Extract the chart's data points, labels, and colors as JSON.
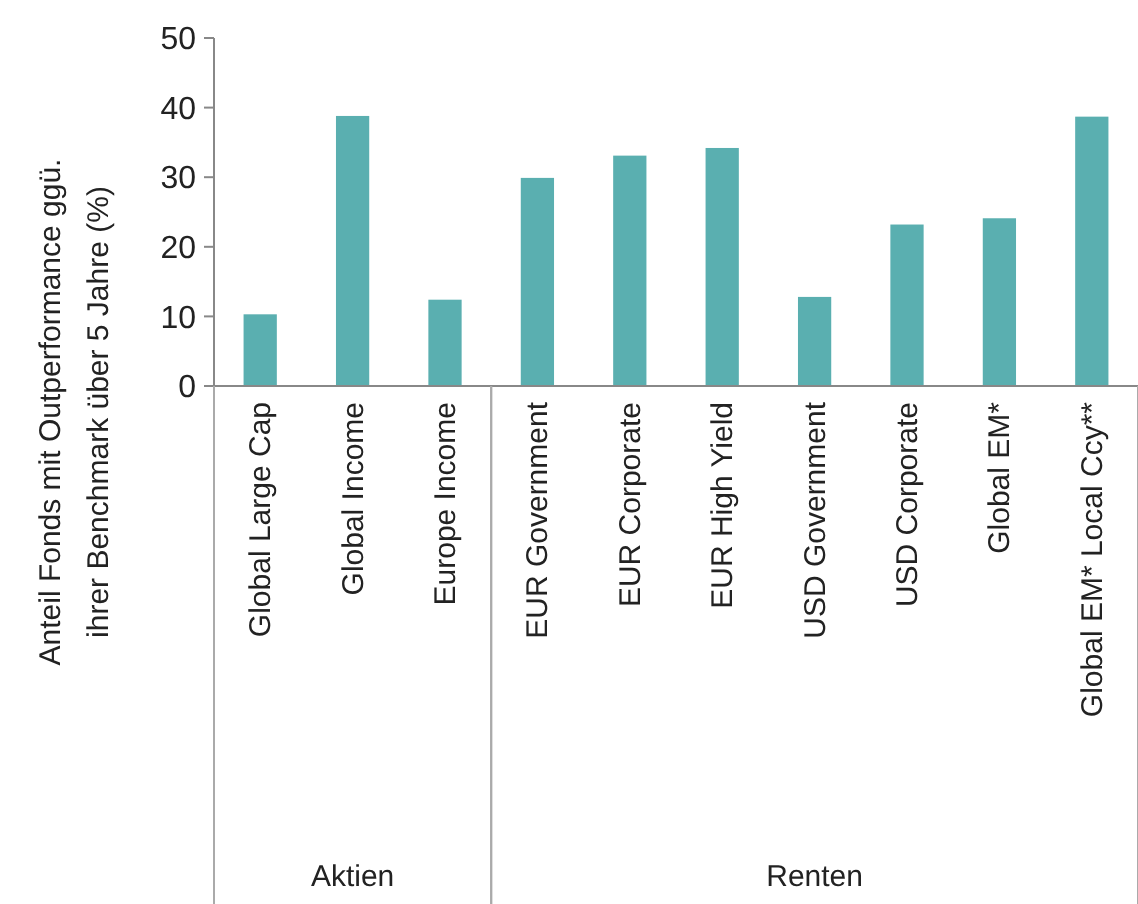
{
  "chart_data": {
    "type": "bar",
    "ylabel": "Anteil Fonds mit Outperformance ggü.\nihrer Benchmark über 5 Jahre (%)",
    "categories": [
      "Global Large Cap",
      "Global Income",
      "Europe Income",
      "EUR Government",
      "EUR Corporate",
      "EUR High Yield",
      "USD Government",
      "USD Corporate",
      "Global EM*",
      "Global EM* Local Ccy**"
    ],
    "values": [
      10.3,
      38.8,
      12.4,
      29.9,
      33.1,
      34.2,
      12.8,
      23.2,
      24.1,
      38.7
    ],
    "color": "#5aafb0",
    "ylim": [
      0,
      50
    ],
    "yticks": [
      0,
      10,
      20,
      30,
      40,
      50
    ],
    "grid": false,
    "annotations": [
      "Aktien",
      "Renten"
    ]
  }
}
